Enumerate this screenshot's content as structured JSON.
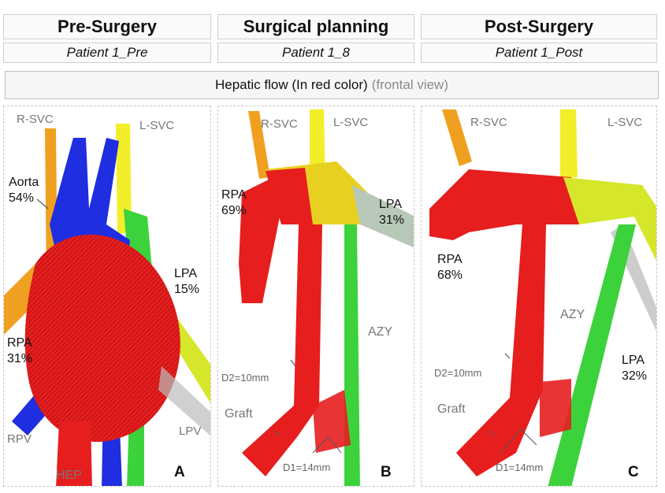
{
  "headers": {
    "pre": "Pre-Surgery",
    "planning": "Surgical planning",
    "post": "Post-Surgery"
  },
  "subheaders": {
    "pre": "Patient 1_Pre",
    "planning": "Patient 1_8",
    "post": "Patient 1_Post"
  },
  "banner": {
    "main": "Hepatic flow (In red color)",
    "view": "(frontal view)"
  },
  "panel_a": {
    "letter": "A",
    "rsvc": "R-SVC",
    "lsvc": "L-SVC",
    "aorta": "Aorta",
    "aorta_pct": "54%",
    "lpa": "LPA",
    "lpa_pct": "15%",
    "rpa": "RPA",
    "rpa_pct": "31%",
    "rpv": "RPV",
    "lpv": "LPV",
    "hep": "HEP"
  },
  "panel_b": {
    "letter": "B",
    "rsvc": "R-SVC",
    "lsvc": "L-SVC",
    "rpa": "RPA",
    "rpa_pct": "69%",
    "lpa": "LPA",
    "lpa_pct": "31%",
    "azy": "AZY",
    "d2": "D2=10mm",
    "graft": "Graft",
    "d1": "D1=14mm"
  },
  "panel_c": {
    "letter": "C",
    "rsvc": "R-SVC",
    "lsvc": "L-SVC",
    "rpa": "RPA",
    "rpa_pct": "68%",
    "azy": "AZY",
    "lpa": "LPA",
    "lpa_pct": "32%",
    "d2": "D2=10mm",
    "graft": "Graft",
    "d1": "D1=14mm"
  },
  "colors": {
    "hepatic_flow": "#e61e1e",
    "aorta": "#1f2ee0",
    "svc_right": "#f0a020",
    "svc_left": "#f2ee2a",
    "azygos": "#3cd23c"
  }
}
